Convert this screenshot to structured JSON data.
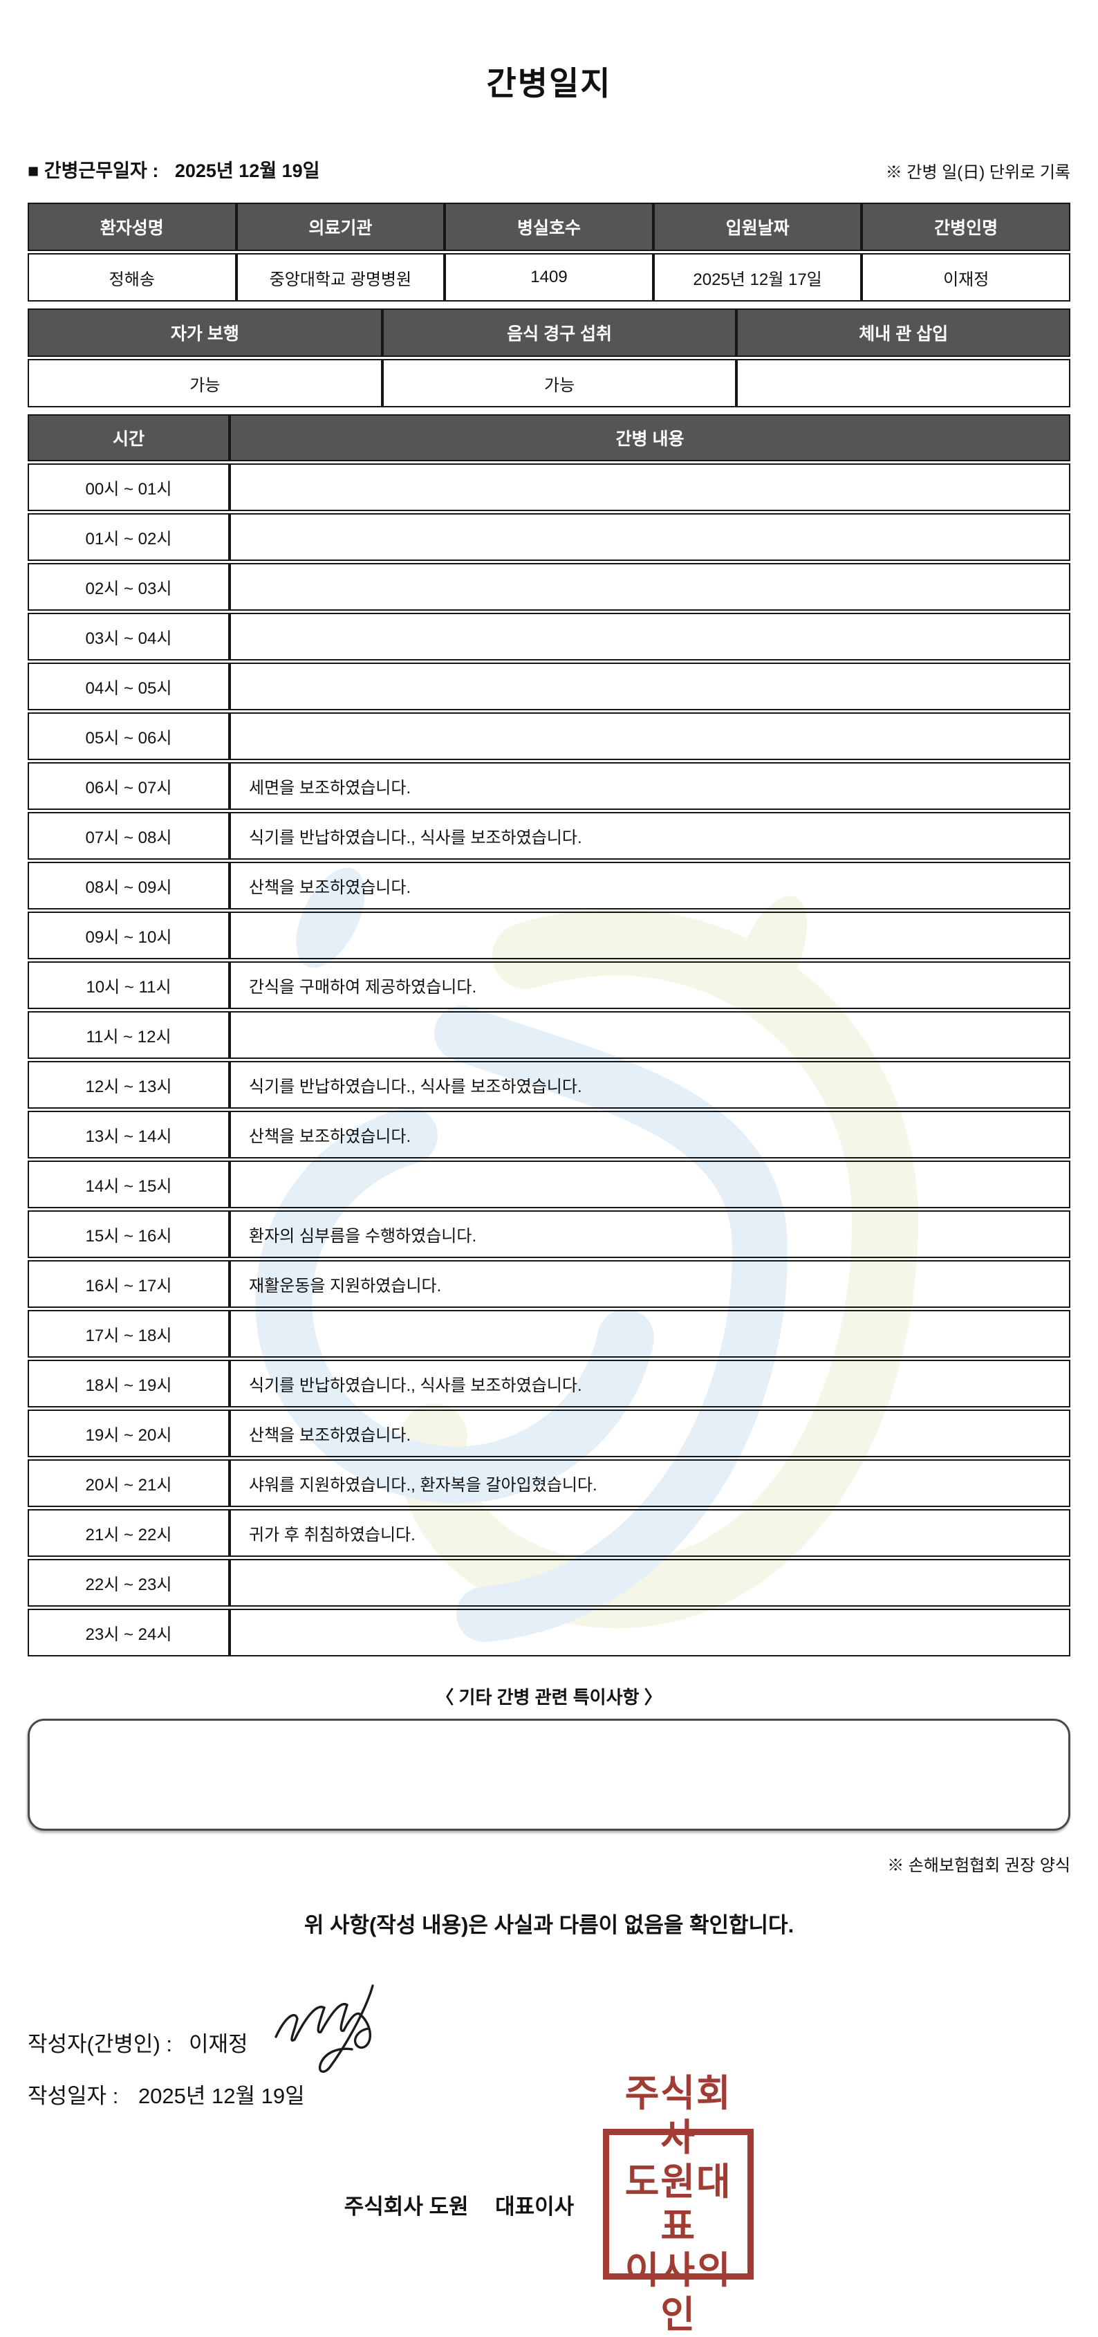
{
  "title": "간병일지",
  "meta": {
    "work_date_label": "■ 간병근무일자 :",
    "work_date": "2025년 12월 19일",
    "unit_note": "※ 간병 일(日) 단위로 기록"
  },
  "patient_table": {
    "headers": [
      "환자성명",
      "의료기관",
      "병실호수",
      "입원날짜",
      "간병인명"
    ],
    "values": [
      "정해송",
      "중앙대학교 광명병원",
      "1409",
      "2025년 12월 17일",
      "이재정"
    ]
  },
  "status_table": {
    "headers": [
      "자가 보행",
      "음식 경구 섭취",
      "체내 관 삽입"
    ],
    "values": [
      "가능",
      "가능",
      ""
    ]
  },
  "care_table": {
    "time_header": "시간",
    "content_header": "간병 내용",
    "rows": [
      {
        "time": "00시 ~ 01시",
        "content": ""
      },
      {
        "time": "01시 ~ 02시",
        "content": ""
      },
      {
        "time": "02시 ~ 03시",
        "content": ""
      },
      {
        "time": "03시 ~ 04시",
        "content": ""
      },
      {
        "time": "04시 ~ 05시",
        "content": ""
      },
      {
        "time": "05시 ~ 06시",
        "content": ""
      },
      {
        "time": "06시 ~ 07시",
        "content": "세면을 보조하였습니다."
      },
      {
        "time": "07시 ~ 08시",
        "content": "식기를 반납하였습니다., 식사를 보조하였습니다."
      },
      {
        "time": "08시 ~ 09시",
        "content": "산책을 보조하였습니다."
      },
      {
        "time": "09시 ~ 10시",
        "content": ""
      },
      {
        "time": "10시 ~ 11시",
        "content": "간식을 구매하여 제공하였습니다."
      },
      {
        "time": "11시 ~ 12시",
        "content": ""
      },
      {
        "time": "12시 ~ 13시",
        "content": "식기를 반납하였습니다., 식사를 보조하였습니다."
      },
      {
        "time": "13시 ~ 14시",
        "content": "산책을 보조하였습니다."
      },
      {
        "time": "14시 ~ 15시",
        "content": ""
      },
      {
        "time": "15시 ~ 16시",
        "content": "환자의 심부름을 수행하였습니다."
      },
      {
        "time": "16시 ~ 17시",
        "content": "재활운동을 지원하였습니다."
      },
      {
        "time": "17시 ~ 18시",
        "content": ""
      },
      {
        "time": "18시 ~ 19시",
        "content": "식기를 반납하였습니다., 식사를 보조하였습니다."
      },
      {
        "time": "19시 ~ 20시",
        "content": "산책을 보조하였습니다."
      },
      {
        "time": "20시 ~ 21시",
        "content": "샤워를 지원하였습니다., 환자복을 갈아입혔습니다."
      },
      {
        "time": "21시 ~ 22시",
        "content": "귀가 후 취침하였습니다."
      },
      {
        "time": "22시 ~ 23시",
        "content": ""
      },
      {
        "time": "23시 ~ 24시",
        "content": ""
      }
    ]
  },
  "notes": {
    "title": "〈 기타 간병 관련 특이사항 〉",
    "content": ""
  },
  "form_note": "※ 손해보험협회 권장 양식",
  "confirmation": "위 사항(작성 내용)은 사실과 다름이 없음을 확인합니다.",
  "writer": {
    "label": "작성자(간병인) :",
    "name": "이재정"
  },
  "write_date": {
    "label": "작성일자 :",
    "value": "2025년 12월 19일"
  },
  "footer": {
    "company": "주식회사 도원",
    "role": "대표이사",
    "stamp_lines": [
      "주식회사",
      "도원대표",
      "이사의인"
    ]
  },
  "colors": {
    "header_bg": "#555558",
    "table_border": "#161616",
    "stamp_red": "#a03c34",
    "watermark_blue": "#cfe2f2",
    "watermark_green": "#edf0d6"
  }
}
